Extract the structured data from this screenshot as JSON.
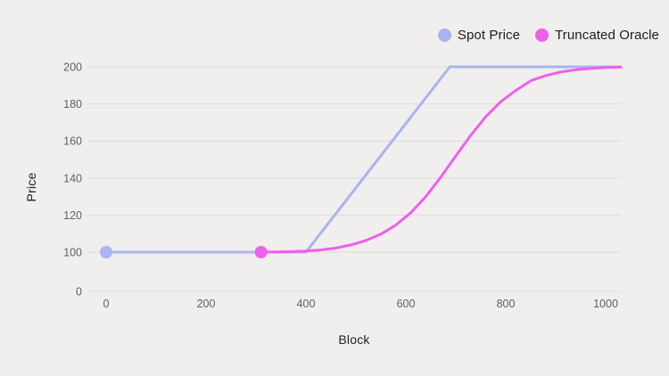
{
  "chart_data": {
    "type": "line",
    "title": "",
    "xlabel": "Block",
    "ylabel": "Price",
    "x_ticks": [
      0,
      200,
      400,
      600,
      800,
      1000
    ],
    "y_ticks": [
      0,
      100,
      120,
      140,
      160,
      180,
      200
    ],
    "xlim": [
      -38,
      1030
    ],
    "ylim": [
      0,
      200
    ],
    "y_axis_note": "broken scale: 0 baseline tick sits just below the 100 gridline",
    "grid": "horizontal",
    "legend_position": "top-right",
    "background_color": "#f0efee",
    "grid_color": "#dbdbd9",
    "tick_label_color": "#616161",
    "axis_title_color": "#222222",
    "legend_text_color": "#1c1c1c",
    "series": [
      {
        "name": "Spot Price",
        "color": "#a9b4f0",
        "start_marker": {
          "block": 0,
          "price": 100
        },
        "points": [
          [
            0,
            100
          ],
          [
            400,
            100
          ],
          [
            688,
            200
          ],
          [
            1030,
            200
          ]
        ]
      },
      {
        "name": "Truncated Oracle",
        "color": "#ee5fec",
        "start_marker": {
          "block": 310,
          "price": 100
        },
        "points": [
          [
            310,
            100
          ],
          [
            340,
            100.1
          ],
          [
            370,
            100.3
          ],
          [
            400,
            100.6
          ],
          [
            430,
            101.2
          ],
          [
            460,
            102.2
          ],
          [
            490,
            103.9
          ],
          [
            520,
            106.3
          ],
          [
            550,
            109.7
          ],
          [
            580,
            114.6
          ],
          [
            610,
            121.3
          ],
          [
            640,
            130
          ],
          [
            670,
            140.5
          ],
          [
            700,
            151.9
          ],
          [
            730,
            163.1
          ],
          [
            760,
            173.1
          ],
          [
            790,
            181.2
          ],
          [
            820,
            187.2
          ],
          [
            850,
            192.5
          ],
          [
            880,
            195.3
          ],
          [
            910,
            197.2
          ],
          [
            940,
            198.4
          ],
          [
            970,
            199.1
          ],
          [
            1000,
            199.6
          ],
          [
            1030,
            199.8
          ]
        ]
      }
    ]
  }
}
